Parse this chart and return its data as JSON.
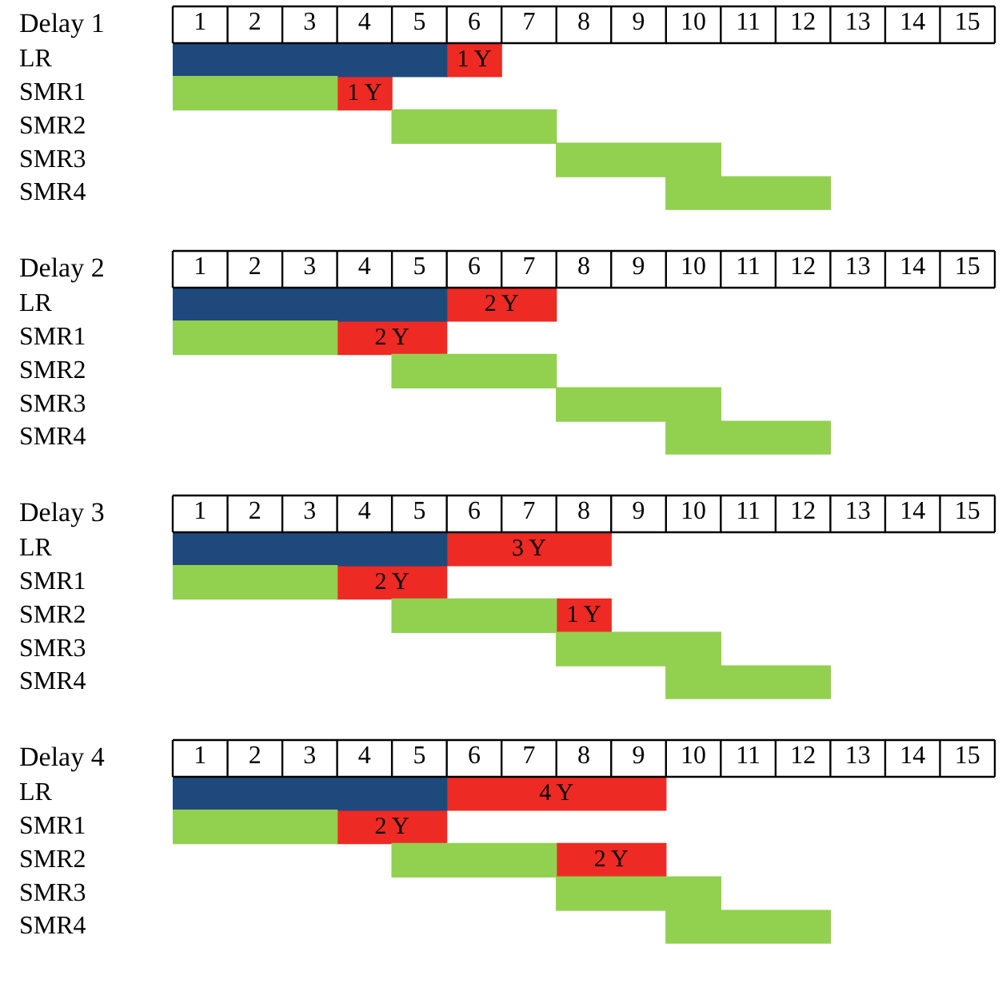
{
  "chart_data": [
    {
      "type": "bar",
      "orientation": "horizontal",
      "title": "Delay 1",
      "categories": [
        "LR",
        "SMR1",
        "SMR2",
        "SMR3",
        "SMR4"
      ],
      "series": [
        {
          "colors": [
            "#1f497d",
            "#92d050",
            "#92d050",
            "#92d050",
            "#92d050"
          ],
          "base": [
            0,
            0,
            4,
            7,
            9
          ],
          "values": [
            5,
            3,
            3,
            3,
            3
          ]
        },
        {
          "color": "#ee2a24",
          "base": [
            5,
            3,
            null,
            null,
            null
          ],
          "values": [
            1,
            1,
            null,
            null,
            null
          ],
          "value_labels": [
            "1 Y",
            "1 Y",
            null,
            null,
            null
          ]
        }
      ],
      "xlim": [
        0,
        15
      ],
      "xticks": [
        {
          "value": 0.5,
          "label": "1"
        },
        {
          "value": 1.5,
          "label": "2"
        },
        {
          "value": 2.5,
          "label": "3"
        },
        {
          "value": 3.5,
          "label": "4"
        },
        {
          "value": 4.5,
          "label": "5"
        },
        {
          "value": 5.5,
          "label": "6"
        },
        {
          "value": 6.5,
          "label": "7"
        },
        {
          "value": 7.5,
          "label": "8"
        },
        {
          "value": 8.5,
          "label": "9"
        },
        {
          "value": 9.5,
          "label": "10"
        },
        {
          "value": 10.5,
          "label": "11"
        },
        {
          "value": 11.5,
          "label": "12"
        },
        {
          "value": 12.5,
          "label": "13"
        },
        {
          "value": 13.5,
          "label": "14"
        },
        {
          "value": 14.5,
          "label": "15"
        }
      ]
    },
    {
      "type": "bar",
      "orientation": "horizontal",
      "title": "Delay 2",
      "categories": [
        "LR",
        "SMR1",
        "SMR2",
        "SMR3",
        "SMR4"
      ],
      "series": [
        {
          "colors": [
            "#1f497d",
            "#92d050",
            "#92d050",
            "#92d050",
            "#92d050"
          ],
          "base": [
            0,
            0,
            4,
            7,
            9
          ],
          "values": [
            5,
            3,
            3,
            3,
            3
          ]
        },
        {
          "color": "#ee2a24",
          "base": [
            5,
            3,
            null,
            null,
            null
          ],
          "values": [
            2,
            2,
            null,
            null,
            null
          ],
          "value_labels": [
            "2 Y",
            "2 Y",
            null,
            null,
            null
          ]
        }
      ],
      "xlim": [
        0,
        15
      ],
      "xticks": [
        {
          "value": 0.5,
          "label": "1"
        },
        {
          "value": 1.5,
          "label": "2"
        },
        {
          "value": 2.5,
          "label": "3"
        },
        {
          "value": 3.5,
          "label": "4"
        },
        {
          "value": 4.5,
          "label": "5"
        },
        {
          "value": 5.5,
          "label": "6"
        },
        {
          "value": 6.5,
          "label": "7"
        },
        {
          "value": 7.5,
          "label": "8"
        },
        {
          "value": 8.5,
          "label": "9"
        },
        {
          "value": 9.5,
          "label": "10"
        },
        {
          "value": 10.5,
          "label": "11"
        },
        {
          "value": 11.5,
          "label": "12"
        },
        {
          "value": 12.5,
          "label": "13"
        },
        {
          "value": 13.5,
          "label": "14"
        },
        {
          "value": 14.5,
          "label": "15"
        }
      ]
    },
    {
      "type": "bar",
      "orientation": "horizontal",
      "title": "Delay 3",
      "categories": [
        "LR",
        "SMR1",
        "SMR2",
        "SMR3",
        "SMR4"
      ],
      "series": [
        {
          "colors": [
            "#1f497d",
            "#92d050",
            "#92d050",
            "#92d050",
            "#92d050"
          ],
          "base": [
            0,
            0,
            4,
            7,
            9
          ],
          "values": [
            5,
            3,
            3,
            3,
            3
          ]
        },
        {
          "color": "#ee2a24",
          "base": [
            5,
            3,
            7,
            null,
            null
          ],
          "values": [
            3,
            2,
            1,
            null,
            null
          ],
          "value_labels": [
            "3 Y",
            "2 Y",
            "1 Y",
            null,
            null
          ]
        }
      ],
      "xlim": [
        0,
        15
      ],
      "xticks": [
        {
          "value": 0.5,
          "label": "1"
        },
        {
          "value": 1.5,
          "label": "2"
        },
        {
          "value": 2.5,
          "label": "3"
        },
        {
          "value": 3.5,
          "label": "4"
        },
        {
          "value": 4.5,
          "label": "5"
        },
        {
          "value": 5.5,
          "label": "6"
        },
        {
          "value": 6.5,
          "label": "7"
        },
        {
          "value": 7.5,
          "label": "8"
        },
        {
          "value": 8.5,
          "label": "9"
        },
        {
          "value": 9.5,
          "label": "10"
        },
        {
          "value": 10.5,
          "label": "11"
        },
        {
          "value": 11.5,
          "label": "12"
        },
        {
          "value": 12.5,
          "label": "13"
        },
        {
          "value": 13.5,
          "label": "14"
        },
        {
          "value": 14.5,
          "label": "15"
        }
      ]
    },
    {
      "type": "bar",
      "orientation": "horizontal",
      "title": "Delay 4",
      "categories": [
        "LR",
        "SMR1",
        "SMR2",
        "SMR3",
        "SMR4"
      ],
      "series": [
        {
          "colors": [
            "#1f497d",
            "#92d050",
            "#92d050",
            "#92d050",
            "#92d050"
          ],
          "base": [
            0,
            0,
            4,
            7,
            9
          ],
          "values": [
            5,
            3,
            3,
            3,
            3
          ]
        },
        {
          "color": "#ee2a24",
          "base": [
            5,
            3,
            7,
            null,
            null
          ],
          "values": [
            4,
            2,
            2,
            null,
            null
          ],
          "value_labels": [
            "4 Y",
            "2 Y",
            "2 Y",
            null,
            null
          ]
        }
      ],
      "xlim": [
        0,
        15
      ],
      "xticks": [
        {
          "value": 0.5,
          "label": "1"
        },
        {
          "value": 1.5,
          "label": "2"
        },
        {
          "value": 2.5,
          "label": "3"
        },
        {
          "value": 3.5,
          "label": "4"
        },
        {
          "value": 4.5,
          "label": "5"
        },
        {
          "value": 5.5,
          "label": "6"
        },
        {
          "value": 6.5,
          "label": "7"
        },
        {
          "value": 7.5,
          "label": "8"
        },
        {
          "value": 8.5,
          "label": "9"
        },
        {
          "value": 9.5,
          "label": "10"
        },
        {
          "value": 10.5,
          "label": "11"
        },
        {
          "value": 11.5,
          "label": "12"
        },
        {
          "value": 12.5,
          "label": "13"
        },
        {
          "value": 13.5,
          "label": "14"
        },
        {
          "value": 14.5,
          "label": "15"
        }
      ]
    }
  ]
}
